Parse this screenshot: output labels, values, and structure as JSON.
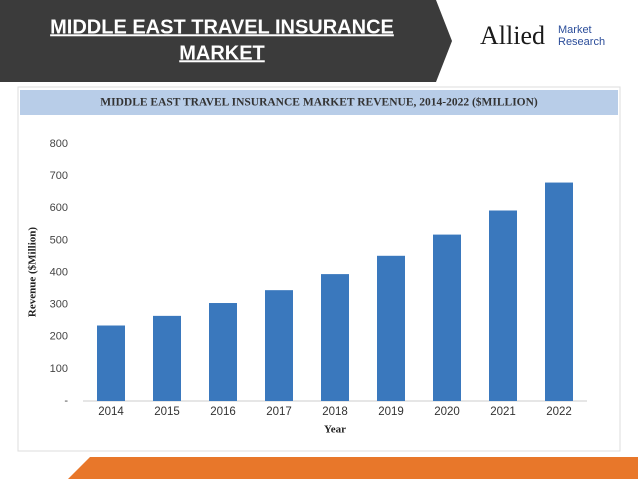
{
  "header": {
    "title_lines": [
      "MIDDLE EAST TRAVEL INSURANCE",
      "MARKET"
    ]
  },
  "logo": {
    "name": "Allied",
    "line1": "Market",
    "line2": "Research"
  },
  "chart_data": {
    "type": "bar",
    "title": "MIDDLE EAST TRAVEL INSURANCE MARKET REVENUE, 2014-2022 ($MILLION)",
    "x_label": "Year",
    "y_label": "Revenue ($Million)",
    "categories": [
      "2014",
      "2015",
      "2016",
      "2017",
      "2018",
      "2019",
      "2020",
      "2021",
      "2022"
    ],
    "values": [
      235,
      265,
      305,
      345,
      395,
      452,
      518,
      593,
      680
    ],
    "color": "#3a78bd",
    "ylim": [
      0,
      800
    ],
    "yticks": [
      {
        "value": 0,
        "label": "-"
      },
      100,
      200,
      300,
      400,
      500,
      600,
      700,
      800
    ],
    "grid": false
  }
}
